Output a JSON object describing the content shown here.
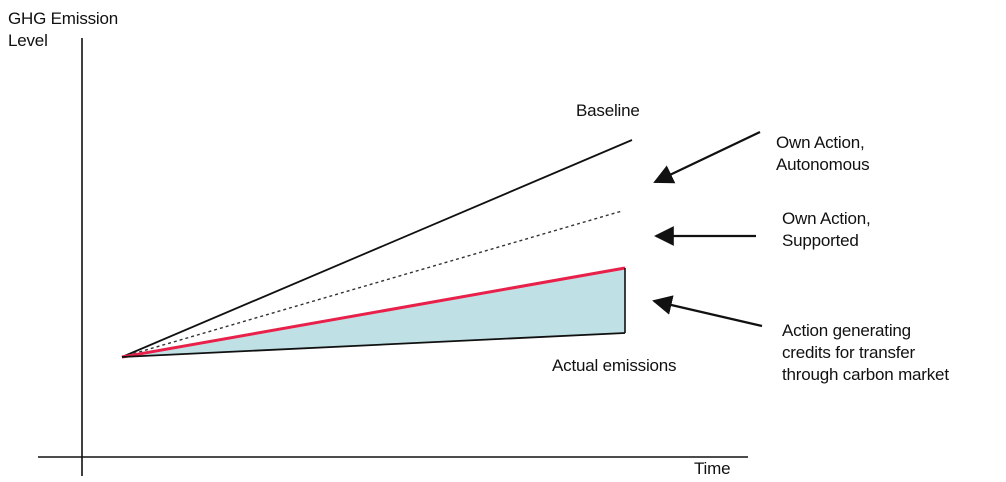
{
  "axes": {
    "y_label": [
      "GHG Emission",
      "Level"
    ],
    "x_label": "Time"
  },
  "lines": {
    "baseline_label": "Baseline",
    "actual_label": "Actual emissions"
  },
  "annotations": [
    {
      "id": "autonomous",
      "lines": [
        "Own Action,",
        "Autonomous"
      ]
    },
    {
      "id": "supported",
      "lines": [
        "Own Action,",
        "Supported"
      ]
    },
    {
      "id": "credits",
      "lines": [
        "Action generating",
        "credits for transfer",
        "through carbon market"
      ]
    }
  ],
  "colors": {
    "axis": "#111111",
    "baseline": "#111111",
    "supported_dashed": "#333333",
    "own_action_line": "#e8204a",
    "credit_fill": "#bfe0e4",
    "arrow": "#111111"
  }
}
